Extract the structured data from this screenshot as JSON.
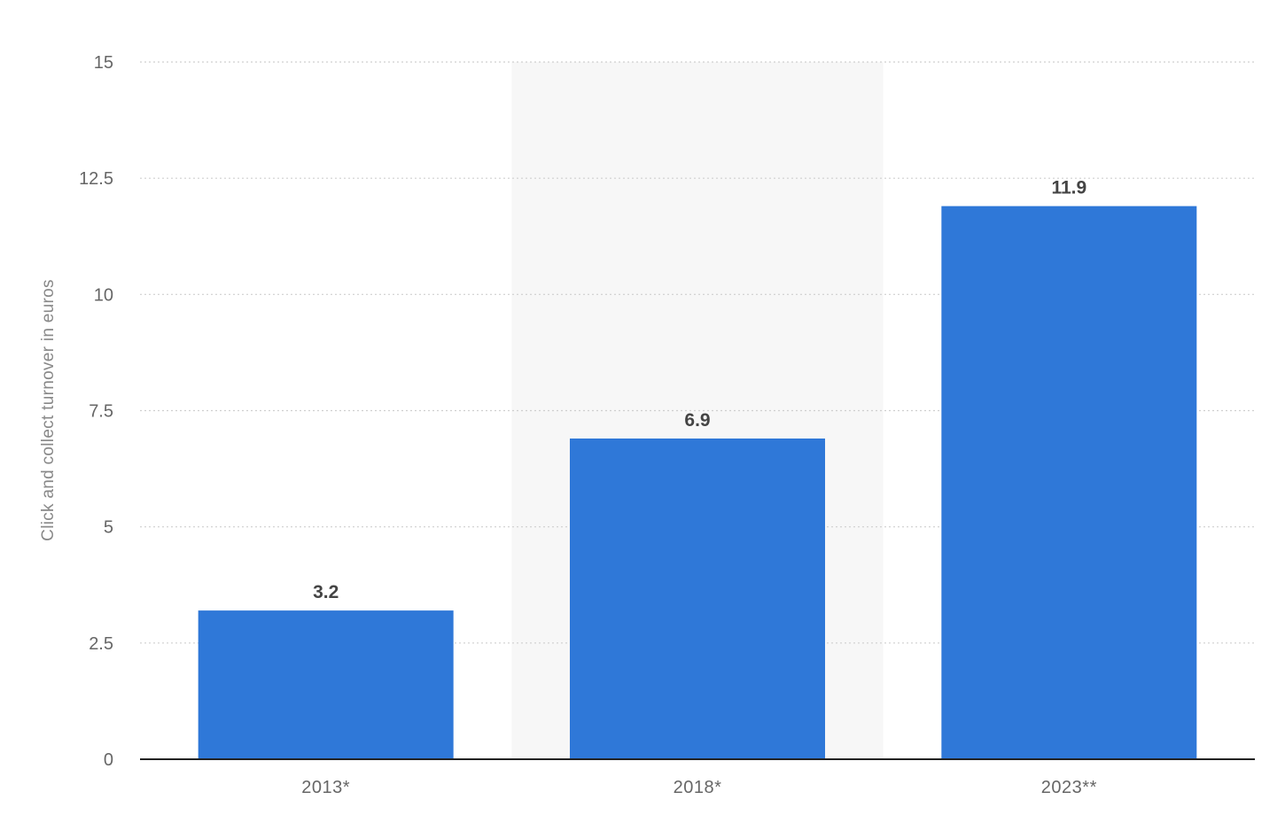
{
  "chart_data": {
    "type": "bar",
    "title": "",
    "xlabel": "",
    "ylabel": "Click and collect turnover in euros",
    "categories": [
      "2013*",
      "2018*",
      "2023**"
    ],
    "values": [
      3.2,
      6.9,
      11.9
    ],
    "value_labels": [
      "3.2",
      "6.9",
      "11.9"
    ],
    "ylim": [
      0,
      15
    ],
    "yticks": [
      0,
      2.5,
      5,
      7.5,
      10,
      12.5,
      15
    ],
    "ytick_labels": [
      "0",
      "2.5",
      "5",
      "7.5",
      "10",
      "12.5",
      "15"
    ],
    "grid": true,
    "highlighted_category": "2018*",
    "colors": {
      "bar": "#2f78d8",
      "grid": "#cfcfcf",
      "baseline": "#222222",
      "highlight_band": "#f7f7f7"
    }
  }
}
